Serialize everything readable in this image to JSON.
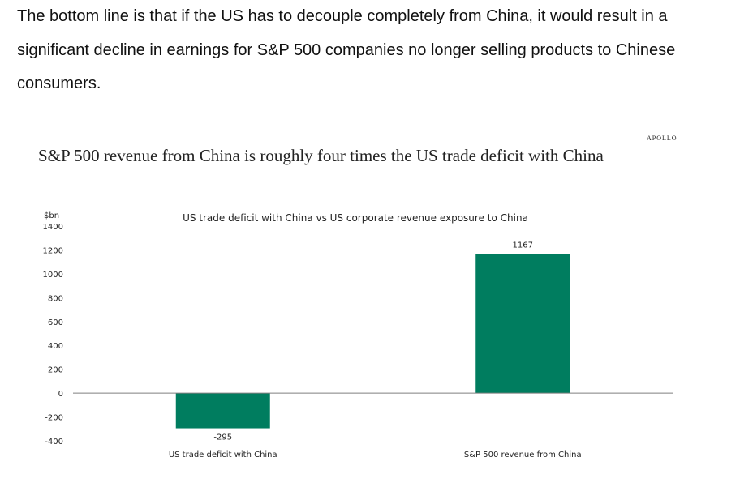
{
  "article": {
    "paragraph": "The bottom line is that if the US has to decouple completely from China, it would result in a significant decline in earnings for S&P 500 companies no longer selling products to Chinese consumers."
  },
  "figure": {
    "brand": "APOLLO",
    "headline": "S&P 500 revenue from China is roughly four times the US trade deficit with China"
  },
  "chart_data": {
    "type": "bar",
    "title": "US trade deficit with China vs US corporate revenue exposure to China",
    "ylabel": "$bn",
    "ylim": [
      -400,
      1400
    ],
    "yticks": [
      1400,
      1200,
      1000,
      800,
      600,
      400,
      200,
      0,
      -200,
      -400
    ],
    "categories": [
      "US trade deficit with China",
      "S&P 500 revenue from China"
    ],
    "values": [
      -295,
      1167
    ],
    "data_labels": [
      "-295",
      "1167"
    ],
    "bar_color": "#007D5F",
    "grid": false,
    "legend": "none"
  }
}
